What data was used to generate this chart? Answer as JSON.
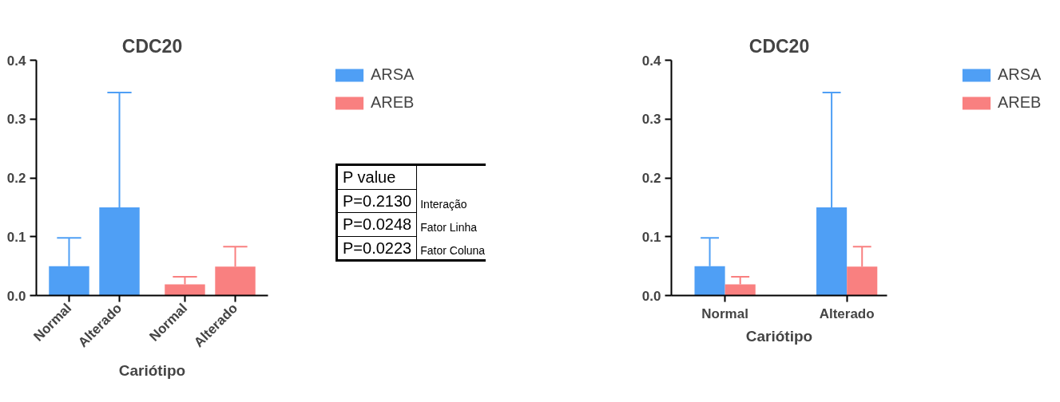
{
  "chart_data": [
    {
      "type": "bar",
      "title": "CDC20",
      "xlabel": "Cariótipo",
      "categories": [
        "Normal",
        "Alterado",
        "Normal",
        "Alterado"
      ],
      "series": [
        {
          "name": "ARSA",
          "color": "#4f9ff5",
          "values": [
            0.05,
            0.15,
            null,
            null
          ],
          "errors": [
            [
              0.05,
              0.098
            ],
            [
              0.15,
              0.345
            ],
            null,
            null
          ]
        },
        {
          "name": "AREB",
          "color": "#f98080",
          "values": [
            null,
            null,
            0.019,
            0.049
          ],
          "errors": [
            null,
            null,
            [
              0.019,
              0.032
            ],
            [
              0.049,
              0.083
            ]
          ]
        }
      ],
      "ylim": [
        0,
        0.4
      ],
      "yticks": [
        {
          "value": 0,
          "label": "0.0"
        },
        0.1,
        0.2,
        0.3,
        0.4
      ],
      "legend": "right",
      "grid": false,
      "annotations": [
        "P value",
        "P=0.2130",
        "Interação",
        "P=0.0248",
        "Fator Linha",
        "P=0.0223",
        "Fator Coluna"
      ]
    },
    {
      "type": "bar",
      "title": "CDC20",
      "xlabel": "Cariótipo",
      "categories": [
        "Normal",
        "Alterado"
      ],
      "series": [
        {
          "name": "ARSA",
          "color": "#4f9ff5",
          "values": [
            0.05,
            0.15
          ],
          "errors": [
            [
              0.05,
              0.098
            ],
            [
              0.15,
              0.345
            ]
          ]
        },
        {
          "name": "AREB",
          "color": "#f98080",
          "values": [
            0.019,
            0.049
          ],
          "errors": [
            [
              0.019,
              0.032
            ],
            [
              0.049,
              0.083
            ]
          ]
        }
      ],
      "ylim": [
        0,
        0.4
      ],
      "yticks": [
        {
          "value": 0,
          "label": "0.0"
        },
        0.1,
        0.2,
        0.3,
        0.4
      ],
      "legend": "right",
      "grid": false
    }
  ]
}
